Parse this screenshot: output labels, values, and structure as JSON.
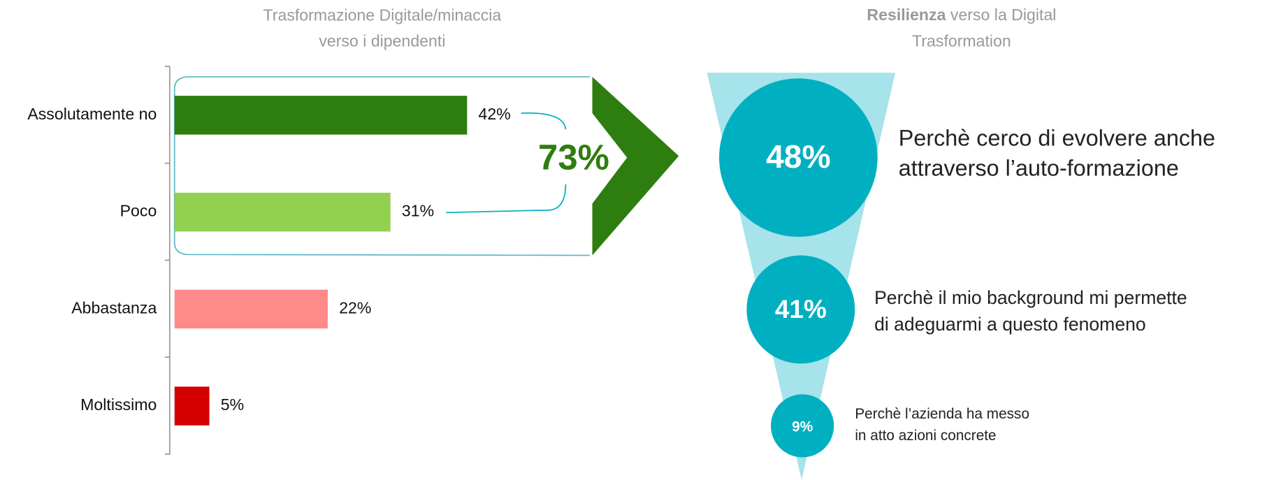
{
  "chart_data": [
    {
      "type": "bar",
      "title_lines": [
        "Trasformazione Digitale/minaccia",
        "verso i dipendenti"
      ],
      "categories": [
        "Assolutamente no",
        "Poco",
        "Abbastanza",
        "Moltissimo"
      ],
      "values": [
        42,
        31,
        22,
        5
      ],
      "value_labels": [
        "42%",
        "31%",
        "22%",
        "5%"
      ],
      "colors": [
        "#2e7d0f",
        "#92d050",
        "#ff8a8a",
        "#d40000"
      ],
      "annotation": "73%"
    },
    {
      "type": "funnel",
      "title_bold": "Resilienza",
      "title_lines": [
        "verso la Digital",
        "Trasformation"
      ],
      "values": [
        48,
        41,
        9
      ],
      "value_labels": [
        "48%",
        "41%",
        "9%"
      ],
      "descriptions": [
        [
          "Perchè cerco di evolvere anche",
          "attraverso l’auto-formazione"
        ],
        [
          "Perchè il mio background mi permette",
          "di adeguarmi a questo fenomeno"
        ],
        [
          "Perchè l’azienda ha messo",
          "in atto azioni concrete"
        ]
      ],
      "color": "#00b0c0",
      "funnel_color": "#a6e3ea"
    }
  ]
}
